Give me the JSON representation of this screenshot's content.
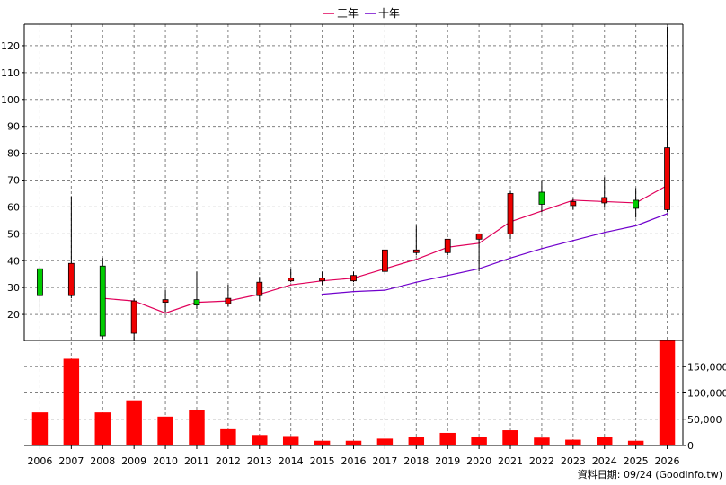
{
  "chart_data": {
    "type": "candlestick",
    "legend": {
      "placement": "top-center",
      "items": [
        {
          "label": "三年",
          "color": "#e0005a"
        },
        {
          "label": "十年",
          "color": "#7000cc"
        }
      ]
    },
    "categories": [
      "2006",
      "2007",
      "2008",
      "2009",
      "2010",
      "2011",
      "2012",
      "2013",
      "2014",
      "2015",
      "2016",
      "2017",
      "2018",
      "2019",
      "2020",
      "2021",
      "2022",
      "2023",
      "2024",
      "2025",
      "2026"
    ],
    "price_axis": {
      "ylim": [
        10,
        128
      ],
      "ticks": [
        20,
        30,
        40,
        50,
        60,
        70,
        80,
        90,
        100,
        110,
        120
      ],
      "tick_labels": [
        "20",
        "30",
        "40",
        "50",
        "60",
        "70",
        "80",
        "90",
        "100",
        "110",
        "120"
      ],
      "grid": true,
      "position": "left"
    },
    "volume_axis": {
      "ylim": [
        0,
        200000
      ],
      "ticks": [
        0,
        50000,
        100000,
        150000
      ],
      "tick_labels": [
        "0",
        "50,000",
        "100,000",
        "150,000"
      ],
      "position": "right"
    },
    "candles": [
      {
        "open": 27,
        "close": 37,
        "high": 38,
        "low": 21
      },
      {
        "open": 39,
        "close": 27,
        "high": 64,
        "low": 26
      },
      {
        "open": 12,
        "close": 38,
        "high": 41,
        "low": 11
      },
      {
        "open": 25,
        "close": 13,
        "high": 26,
        "low": 10
      },
      {
        "open": 25.5,
        "close": 24.5,
        "high": 29,
        "low": 21
      },
      {
        "open": 23.5,
        "close": 25.5,
        "high": 36,
        "low": 22
      },
      {
        "open": 26,
        "close": 24,
        "high": 31,
        "low": 23
      },
      {
        "open": 32,
        "close": 27,
        "high": 34,
        "low": 25
      },
      {
        "open": 33.5,
        "close": 32.5,
        "high": 37,
        "low": 32
      },
      {
        "open": 33.5,
        "close": 32.5,
        "high": 36,
        "low": 31
      },
      {
        "open": 34.5,
        "close": 32.5,
        "high": 36,
        "low": 32
      },
      {
        "open": 44,
        "close": 36,
        "high": 44,
        "low": 35
      },
      {
        "open": 44,
        "close": 43,
        "high": 53,
        "low": 42
      },
      {
        "open": 48,
        "close": 43,
        "high": 48,
        "low": 42
      },
      {
        "open": 50,
        "close": 48,
        "high": 50,
        "low": 36
      },
      {
        "open": 65,
        "close": 50,
        "high": 66,
        "low": 48
      },
      {
        "open": 61,
        "close": 65.5,
        "high": 70,
        "low": 58
      },
      {
        "open": 62,
        "close": 60.5,
        "high": 63,
        "low": 59
      },
      {
        "open": 63.5,
        "close": 61.5,
        "high": 71,
        "low": 60
      },
      {
        "open": 59.5,
        "close": 62.5,
        "high": 67,
        "low": 56
      },
      {
        "open": 82,
        "close": 59,
        "high": 127,
        "low": 58
      }
    ],
    "series": [
      {
        "name": "三年",
        "values": [
          null,
          null,
          26,
          25,
          20.5,
          24.5,
          25,
          27.5,
          31,
          32.5,
          33.5,
          37,
          40.5,
          45,
          46.5,
          54.5,
          58.5,
          62.5,
          62,
          61.5,
          68
        ]
      },
      {
        "name": "十年",
        "values": [
          null,
          null,
          null,
          null,
          null,
          null,
          null,
          null,
          null,
          27.5,
          28.5,
          29,
          32,
          34.5,
          37,
          41,
          44.5,
          47.5,
          50.5,
          53,
          57.5
        ]
      }
    ],
    "volume": [
      63000,
      165000,
      63000,
      86000,
      55000,
      67000,
      31000,
      20000,
      18000,
      9000,
      9000,
      13000,
      17000,
      24000,
      17000,
      29000,
      15000,
      11000,
      17000,
      9000,
      200000
    ],
    "colors": {
      "up": "#ee0000",
      "down": "#00cc00",
      "volume": "#ff0000",
      "grid": "#808080",
      "axis": "#000000"
    }
  },
  "source_note": "資料日期: 09/24 (Goodinfo.tw)"
}
